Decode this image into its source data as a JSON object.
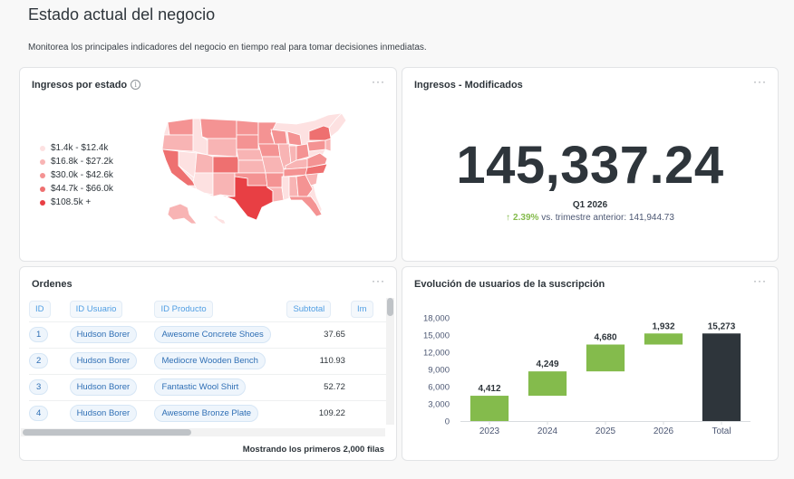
{
  "page": {
    "title": "Estado actual del negocio",
    "description": "Monitorea los principales indicadores del negocio en tiempo real para tomar decisiones inmediatas."
  },
  "map_card": {
    "title": "Ingresos por estado",
    "info_icon": "info-icon",
    "menu": "···",
    "legend": [
      {
        "label": "$1.4k - $12.4k",
        "color": "#fde1e1"
      },
      {
        "label": "$16.8k - $27.2k",
        "color": "#f8b4b4"
      },
      {
        "label": "$30.0k - $42.6k",
        "color": "#f49393"
      },
      {
        "label": "$44.7k - $66.0k",
        "color": "#ee7070"
      },
      {
        "label": "$108.5k +",
        "color": "#e83f44"
      }
    ]
  },
  "scalar_card": {
    "title": "Ingresos - Modificados",
    "menu": "···",
    "value": "145,337.24",
    "period": "Q1 2026",
    "change_pct": "2.39%",
    "change_text": "vs. trimestre anterior: 141,944.73",
    "arrow_icon": "arrow-up-icon"
  },
  "table_card": {
    "title": "Ordenes",
    "menu": "···",
    "columns": [
      "ID",
      "ID Usuario",
      "ID Producto",
      "Subtotal",
      "Im"
    ],
    "rows": [
      {
        "id": "1",
        "user": "Hudson Borer",
        "product": "Awesome Concrete Shoes",
        "subtotal": "37.65"
      },
      {
        "id": "2",
        "user": "Hudson Borer",
        "product": "Mediocre Wooden Bench",
        "subtotal": "110.93"
      },
      {
        "id": "3",
        "user": "Hudson Borer",
        "product": "Fantastic Wool Shirt",
        "subtotal": "52.72"
      },
      {
        "id": "4",
        "user": "Hudson Borer",
        "product": "Awesome Bronze Plate",
        "subtotal": "109.22"
      }
    ],
    "footer": "Mostrando los primeros 2,000 filas"
  },
  "chart_card": {
    "title": "Evolución de usuarios de la suscripción",
    "menu": "···"
  },
  "chart_data": {
    "type": "bar",
    "subtype": "waterfall",
    "title": "Evolución de usuarios de la suscripción",
    "categories": [
      "2023",
      "2024",
      "2025",
      "2026",
      "Total"
    ],
    "values": [
      4412,
      4249,
      4680,
      1932,
      15273
    ],
    "value_labels": [
      "4,412",
      "4,249",
      "4,680",
      "1,932",
      "15,273"
    ],
    "yticks": [
      0,
      3000,
      6000,
      9000,
      12000,
      15000,
      18000
    ],
    "ytick_labels": [
      "0",
      "3,000",
      "6,000",
      "9,000",
      "12,000",
      "15,000",
      "18,000"
    ],
    "ylim": [
      0,
      18000
    ],
    "increase_color": "#84bb4c",
    "total_color": "#2e353b"
  }
}
